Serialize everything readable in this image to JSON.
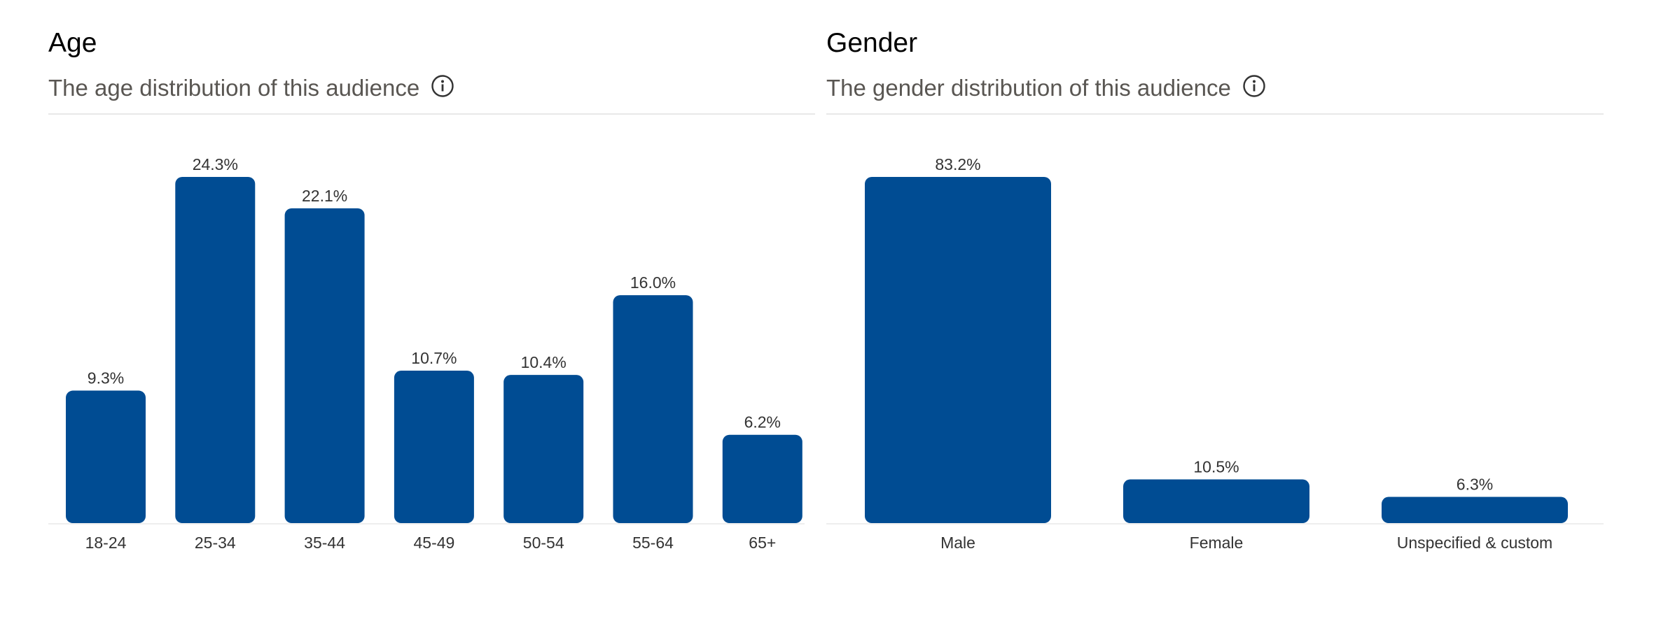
{
  "colors": {
    "bar": "#004c93",
    "subtitle": "#595652",
    "label": "#333333"
  },
  "icons": {
    "info": "info-circle-icon"
  },
  "age": {
    "title": "Age",
    "subtitle": "The age distribution of this audience"
  },
  "gender": {
    "title": "Gender",
    "subtitle": "The gender distribution of this audience"
  },
  "chart_data": [
    {
      "type": "bar",
      "title": "Age",
      "categories": [
        "18-24",
        "25-34",
        "35-44",
        "45-49",
        "50-54",
        "55-64",
        "65+"
      ],
      "values": [
        9.3,
        24.3,
        22.1,
        10.7,
        10.4,
        16.0,
        6.2
      ],
      "value_labels": [
        "9.3%",
        "24.3%",
        "22.1%",
        "10.7%",
        "10.4%",
        "16.0%",
        "6.2%"
      ],
      "unit": "%",
      "ylim": [
        0,
        24.3
      ],
      "grid": false,
      "legend": "none"
    },
    {
      "type": "bar",
      "title": "Gender",
      "categories": [
        "Male",
        "Female",
        "Unspecified & custom"
      ],
      "values": [
        83.2,
        10.5,
        6.3
      ],
      "value_labels": [
        "83.2%",
        "10.5%",
        "6.3%"
      ],
      "unit": "%",
      "ylim": [
        0,
        83.2
      ],
      "grid": false,
      "legend": "none"
    }
  ]
}
